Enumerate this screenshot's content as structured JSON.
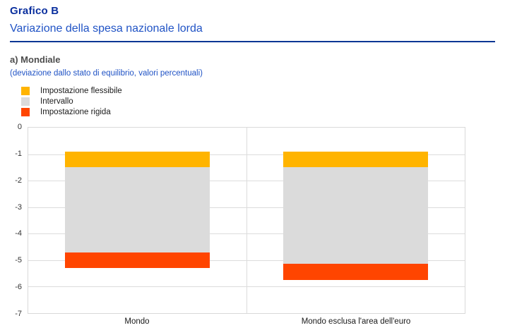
{
  "header": {
    "kicker": "Grafico B",
    "title": "Variazione della spesa nazionale lorda",
    "panel_label": "a) Mondiale",
    "note": "(deviazione dallo stato di equilibrio, valori percentuali)"
  },
  "colors": {
    "kicker": "#0a2f9e",
    "title": "#2053c5",
    "rule": "#0a3694",
    "panel_label": "#4d4d4d",
    "note": "#2053c5",
    "grid": "#dcdcdc",
    "flexible": "#ffb400",
    "interval": "#dbdbdb",
    "rigid": "#ff4500"
  },
  "legend": {
    "items": [
      {
        "label": "Impostazione flessibile",
        "color": "#ffb400"
      },
      {
        "label": "Intervallo",
        "color": "#dbdbdb"
      },
      {
        "label": "Impostazione rigida",
        "color": "#ff4500"
      }
    ]
  },
  "chart_data": {
    "type": "bar",
    "subtype": "stacked-range",
    "title": "a) Mondiale",
    "note": "(deviazione dallo stato di equilibrio, valori percentuali)",
    "categories": [
      "Mondo",
      "Mondo esclusa l'area dell'euro"
    ],
    "xlabel": "",
    "ylabel": "",
    "ylim": [
      0,
      -7
    ],
    "yticks": [
      0,
      -1,
      -2,
      -3,
      -4,
      -5,
      -6,
      -7
    ],
    "grid": true,
    "legend_position": "top-left",
    "series": [
      {
        "name": "Impostazione flessibile",
        "color": "#ffb400",
        "ranges": [
          [
            -0.9,
            -1.5
          ],
          [
            -0.9,
            -1.5
          ]
        ]
      },
      {
        "name": "Intervallo",
        "color": "#dbdbdb",
        "ranges": [
          [
            -1.5,
            -4.7
          ],
          [
            -1.5,
            -5.15
          ]
        ]
      },
      {
        "name": "Impostazione rigida",
        "color": "#ff4500",
        "ranges": [
          [
            -4.7,
            -5.3
          ],
          [
            -5.15,
            -5.75
          ]
        ]
      }
    ]
  }
}
